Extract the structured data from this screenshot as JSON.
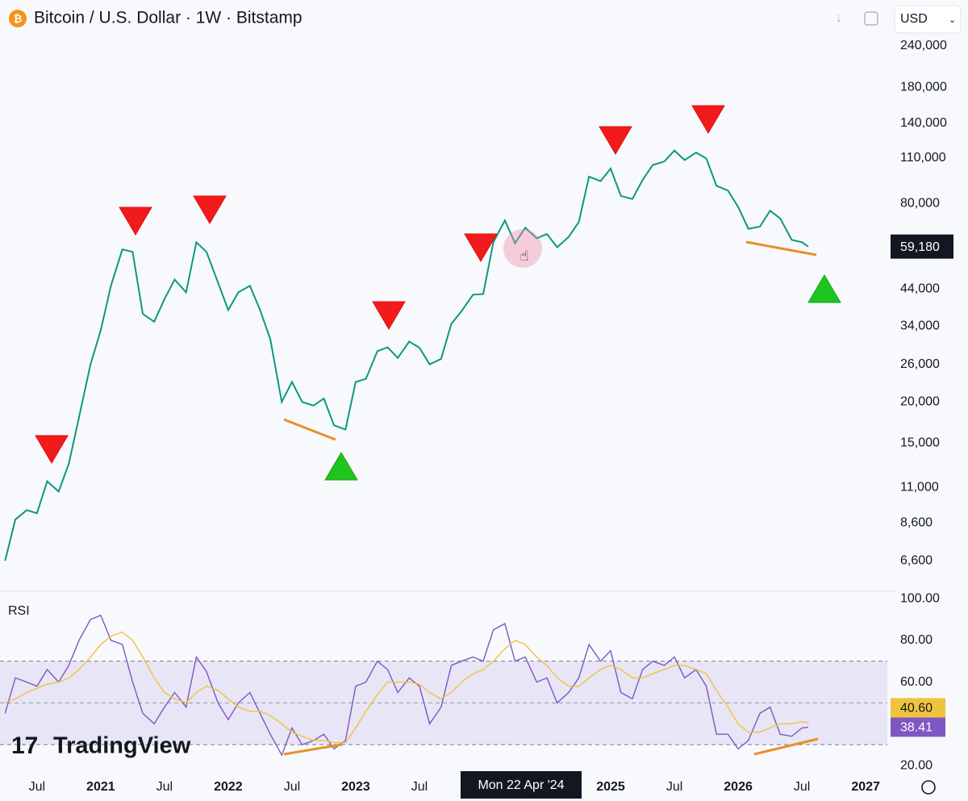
{
  "header": {
    "currency": "USD"
  },
  "brand": "TradingView",
  "crosshair_label": "Mon 22 Apr '24",
  "chart_data": [
    {
      "type": "line",
      "title": "Bitcoin / U.S. Dollar · 1W · Bitstamp",
      "log_scale": true,
      "color": "#089981",
      "x": [
        2020.25,
        2020.33,
        2020.42,
        2020.5,
        2020.58,
        2020.67,
        2020.75,
        2020.83,
        2020.92,
        2021,
        2021.08,
        2021.17,
        2021.25,
        2021.33,
        2021.42,
        2021.5,
        2021.58,
        2021.67,
        2021.75,
        2021.83,
        2021.92,
        2022,
        2022.08,
        2022.17,
        2022.25,
        2022.33,
        2022.42,
        2022.5,
        2022.58,
        2022.67,
        2022.75,
        2022.83,
        2022.92,
        2023,
        2023.08,
        2023.17,
        2023.25,
        2023.33,
        2023.42,
        2023.5,
        2023.58,
        2023.67,
        2023.75,
        2023.83,
        2023.92,
        2024,
        2024.08,
        2024.17,
        2024.25,
        2024.33,
        2024.42,
        2024.5,
        2024.58,
        2024.67,
        2024.75,
        2024.83,
        2024.92,
        2025,
        2025.08,
        2025.17,
        2025.25,
        2025.33,
        2025.42,
        2025.5,
        2025.58,
        2025.67,
        2025.75,
        2025.83,
        2025.92,
        2026,
        2026.08,
        2026.17,
        2026.25,
        2026.33,
        2026.42,
        2026.5,
        2026.55
      ],
      "values": [
        6600,
        8800,
        9400,
        9200,
        11500,
        10700,
        13000,
        18000,
        26000,
        33000,
        45000,
        58000,
        57000,
        37000,
        35000,
        41000,
        47000,
        43000,
        61000,
        57000,
        46000,
        38000,
        43000,
        45000,
        38000,
        31000,
        20000,
        23000,
        20000,
        19500,
        20500,
        17000,
        16500,
        23000,
        23500,
        28500,
        29300,
        27200,
        30500,
        29200,
        26000,
        27000,
        34500,
        37700,
        42300,
        42500,
        61000,
        71000,
        60600,
        67500,
        62700,
        64600,
        58900,
        63300,
        70200,
        96400,
        93400,
        102000,
        84300,
        82500,
        94200,
        104600,
        107100,
        115700,
        108200,
        114000,
        109500,
        90400,
        87500,
        78000,
        67000,
        68000,
        76000,
        72000,
        62000,
        61000,
        59180
      ],
      "last_price": {
        "value": 59180,
        "label": "59,180"
      },
      "xlim": [
        2020.21,
        2027.17
      ],
      "xticks": [
        {
          "value": 2020.5,
          "label": "Jul"
        },
        2021,
        {
          "value": 2021.5,
          "label": "Jul"
        },
        2022,
        {
          "value": 2022.5,
          "label": "Jul"
        },
        2023,
        {
          "value": 2023.5,
          "label": "Jul"
        },
        2025,
        {
          "value": 2025.5,
          "label": "Jul"
        },
        2026,
        {
          "value": 2026.5,
          "label": "Jul"
        },
        2027
      ],
      "ylim": [
        5336,
        330840
      ],
      "yticks": [
        {
          "value": 240000,
          "label": "240,000"
        },
        {
          "value": 180000,
          "label": "180,000"
        },
        {
          "value": 140000,
          "label": "140,000"
        },
        {
          "value": 110000,
          "label": "110,000"
        },
        {
          "value": 80000,
          "label": "80,000"
        },
        {
          "value": 44000,
          "label": "44,000"
        },
        {
          "value": 34000,
          "label": "34,000"
        },
        {
          "value": 26000,
          "label": "26,000"
        },
        {
          "value": 20000,
          "label": "20,000"
        },
        {
          "value": 15000,
          "label": "15,000"
        },
        {
          "value": 11000,
          "label": "11,000"
        },
        {
          "value": 8600,
          "label": "8,600"
        },
        {
          "value": 6600,
          "label": "6,600"
        }
      ]
    },
    {
      "type": "line",
      "title": "RSI",
      "series": [
        {
          "color": "#7e57c2",
          "last_label": {
            "value": 38.41,
            "label": "38.41"
          },
          "values": [
            45,
            62,
            60,
            58,
            66,
            60,
            68,
            80,
            90,
            92,
            80,
            78,
            60,
            45,
            40,
            48,
            55,
            48,
            72,
            65,
            50,
            42,
            50,
            55,
            45,
            35,
            25,
            38,
            30,
            32,
            35,
            28,
            32,
            58,
            60,
            70,
            66,
            55,
            62,
            58,
            40,
            48,
            68,
            70,
            72,
            70,
            85,
            88,
            70,
            72,
            60,
            62,
            50,
            55,
            62,
            78,
            70,
            75,
            55,
            52,
            66,
            70,
            68,
            72,
            62,
            66,
            58,
            35,
            35,
            28,
            32,
            45,
            48,
            35,
            34,
            38,
            38.41
          ]
        },
        {
          "color": "#f0c33c",
          "last_label": {
            "value": 40.6,
            "label": "40.60"
          },
          "values": [
            50,
            52,
            55,
            57,
            59,
            60,
            62,
            66,
            72,
            78,
            82,
            84,
            80,
            72,
            62,
            55,
            52,
            50,
            55,
            58,
            56,
            52,
            48,
            46,
            46,
            44,
            40,
            36,
            34,
            32,
            32,
            31,
            31,
            38,
            46,
            54,
            60,
            60,
            60,
            59,
            55,
            52,
            55,
            60,
            64,
            66,
            70,
            76,
            80,
            78,
            72,
            68,
            62,
            58,
            58,
            62,
            66,
            68,
            66,
            62,
            62,
            64,
            66,
            68,
            68,
            66,
            64,
            56,
            48,
            40,
            36,
            36,
            38,
            40,
            40,
            41,
            40.6
          ]
        }
      ],
      "band": [
        30,
        70
      ],
      "midline": 50,
      "ylim": [
        15,
        103.5
      ],
      "yticks": [
        {
          "value": 100,
          "label": "100.00"
        },
        {
          "value": 80,
          "label": "80.00"
        },
        {
          "value": 60,
          "label": "60.00"
        },
        {
          "value": 20,
          "label": "20.00"
        }
      ]
    }
  ]
}
